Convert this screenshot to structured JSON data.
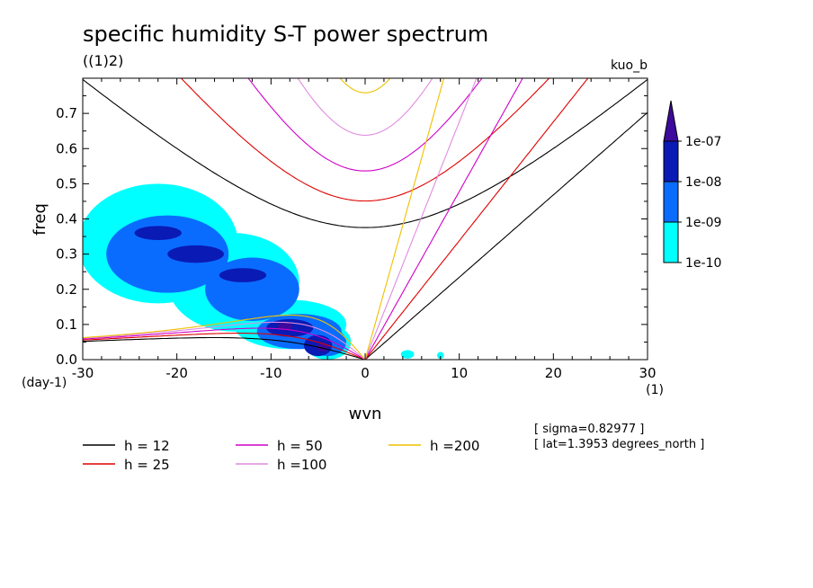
{
  "chart_data": {
    "type": "heatmap",
    "title": "specific humidity S-T power spectrum",
    "subtitle_left": "((1)2)",
    "subtitle_right": "kuo_b",
    "xlabel": "wvn",
    "ylabel": "freq",
    "x_unit": "(1)",
    "y_unit": "(day-1)",
    "xlim": [
      -30,
      30
    ],
    "ylim": [
      0,
      0.8
    ],
    "x_ticks": [
      -30,
      -20,
      -10,
      0,
      10,
      20,
      30
    ],
    "x_tick_labels": [
      "-30",
      "-20",
      "-10",
      "0",
      "10",
      "20",
      "30"
    ],
    "y_ticks": [
      0,
      0.1,
      0.2,
      0.3,
      0.4,
      0.5,
      0.6,
      0.7
    ],
    "y_tick_labels": [
      "0.0",
      "0.1",
      "0.2",
      "0.3",
      "0.4",
      "0.5",
      "0.6",
      "0.7"
    ],
    "colorbar": {
      "levels": [
        "1e-10",
        "1e-09",
        "1e-08",
        "1e-07"
      ],
      "colors": [
        "#00ffff",
        "#0a6cff",
        "#0a1ab4",
        "#3c0a9c"
      ]
    },
    "legend": [
      {
        "label": "h = 12",
        "color": "#000000",
        "h": 12
      },
      {
        "label": "h = 25",
        "color": "#e00000",
        "h": 25
      },
      {
        "label": "h = 50",
        "color": "#d000c8",
        "h": 50
      },
      {
        "label": "h =100",
        "color": "#e08ce0",
        "h": 100
      },
      {
        "label": "h =200",
        "color": "#f0c000",
        "h": 200
      }
    ],
    "annotations": [
      "[ sigma=0.82977 ]",
      "[ lat=1.3953 degrees_north ]"
    ],
    "blobs": [
      {
        "level": 0,
        "cx": -22,
        "cy": 0.33,
        "rx": 8.5,
        "ry": 0.17
      },
      {
        "level": 0,
        "cx": -14,
        "cy": 0.22,
        "rx": 7,
        "ry": 0.14
      },
      {
        "level": 0,
        "cx": -8,
        "cy": 0.1,
        "rx": 6,
        "ry": 0.07
      },
      {
        "level": 0,
        "cx": -4,
        "cy": 0.05,
        "rx": 2.5,
        "ry": 0.05
      },
      {
        "level": 0,
        "cx": 4.5,
        "cy": 0.015,
        "rx": 0.7,
        "ry": 0.012
      },
      {
        "level": 0,
        "cx": 8,
        "cy": 0.012,
        "rx": 0.35,
        "ry": 0.01
      },
      {
        "level": 1,
        "cx": -21,
        "cy": 0.3,
        "rx": 6.5,
        "ry": 0.11
      },
      {
        "level": 1,
        "cx": -12,
        "cy": 0.2,
        "rx": 5,
        "ry": 0.09
      },
      {
        "level": 1,
        "cx": -7,
        "cy": 0.08,
        "rx": 4.5,
        "ry": 0.05
      },
      {
        "level": 1,
        "cx": -4,
        "cy": 0.05,
        "rx": 2,
        "ry": 0.04
      },
      {
        "level": 2,
        "cx": -8,
        "cy": 0.09,
        "rx": 2.5,
        "ry": 0.025
      },
      {
        "level": 2,
        "cx": -5,
        "cy": 0.04,
        "rx": 1.5,
        "ry": 0.03
      },
      {
        "level": 2,
        "cx": -18,
        "cy": 0.3,
        "rx": 3,
        "ry": 0.025
      },
      {
        "level": 2,
        "cx": -22,
        "cy": 0.36,
        "rx": 2.5,
        "ry": 0.02
      },
      {
        "level": 2,
        "cx": -13,
        "cy": 0.24,
        "rx": 2.5,
        "ry": 0.02
      },
      {
        "level": 3,
        "cx": -8.5,
        "cy": 0.095,
        "rx": 0.8,
        "ry": 0.012
      },
      {
        "level": 3,
        "cx": -4.5,
        "cy": 0.035,
        "rx": 0.6,
        "ry": 0.012
      }
    ]
  }
}
